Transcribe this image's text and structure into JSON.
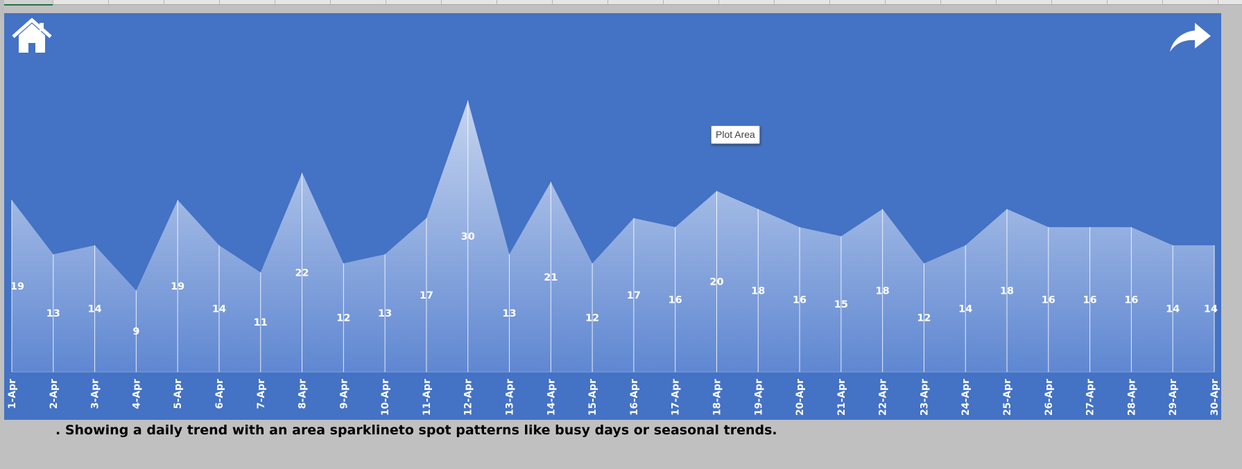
{
  "chart_data": {
    "type": "area",
    "title": "",
    "xlabel": "",
    "ylabel": "",
    "categories": [
      "1-Apr",
      "2-Apr",
      "3-Apr",
      "4-Apr",
      "5-Apr",
      "6-Apr",
      "7-Apr",
      "8-Apr",
      "9-Apr",
      "10-Apr",
      "11-Apr",
      "12-Apr",
      "13-Apr",
      "14-Apr",
      "15-Apr",
      "16-Apr",
      "17-Apr",
      "18-Apr",
      "19-Apr",
      "20-Apr",
      "21-Apr",
      "22-Apr",
      "23-Apr",
      "24-Apr",
      "25-Apr",
      "26-Apr",
      "27-Apr",
      "28-Apr",
      "29-Apr",
      "30-Apr"
    ],
    "values": [
      19,
      13,
      14,
      9,
      19,
      14,
      11,
      22,
      12,
      13,
      17,
      30,
      13,
      21,
      12,
      17,
      16,
      20,
      18,
      16,
      15,
      18,
      12,
      14,
      18,
      16,
      16,
      16,
      14,
      14
    ],
    "ylim": [
      0,
      30
    ],
    "grid": false,
    "legend": "none",
    "colors": {
      "background": "#4472c4",
      "area_top": "#c5d4ef",
      "area_bottom": "#5f87d1",
      "drop_lines": "#ffffff",
      "labels": "#ffffff"
    }
  },
  "icons": {
    "home": "home-icon",
    "forward": "forward-arrow-icon"
  },
  "tooltip": {
    "text": "Plot Area"
  },
  "caption": {
    "text": ". Showing a daily trend with an area sparklineto spot patterns like busy days or seasonal trends."
  }
}
